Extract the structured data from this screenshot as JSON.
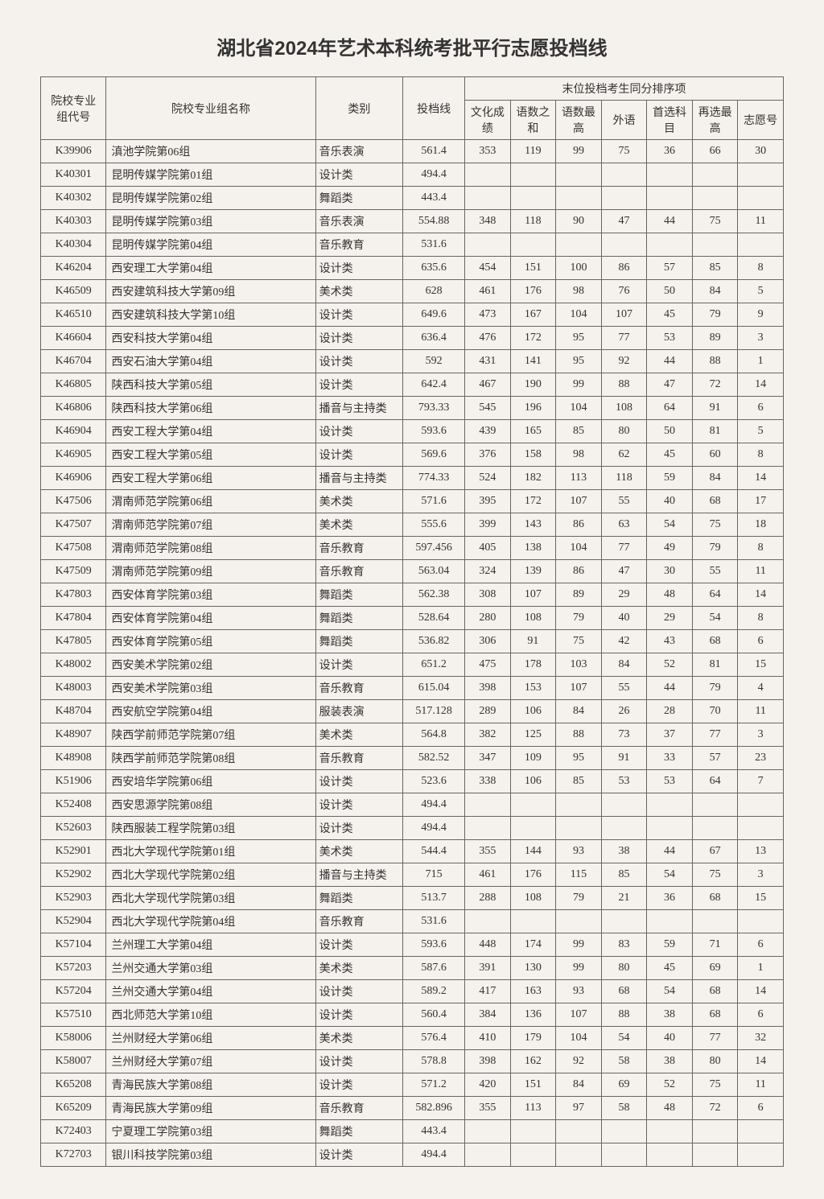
{
  "title": "湖北省2024年艺术本科统考批平行志愿投档线",
  "headers": {
    "code": "院校专业组代号",
    "name": "院校专业组名称",
    "category": "类别",
    "line": "投档线",
    "tiebreak_group": "末位投档考生同分排序项",
    "culture": "文化成绩",
    "yushu_sum": "语数之和",
    "yushu_max": "语数最高",
    "foreign": "外语",
    "first_sub": "首选科目",
    "resel_max": "再选最高",
    "wish_no": "志愿号"
  },
  "columns": [
    "code",
    "name",
    "category",
    "line",
    "culture",
    "yushu_sum",
    "yushu_max",
    "foreign",
    "first_sub",
    "resel_max",
    "wish_no"
  ],
  "col_widths": [
    "72",
    "230",
    "96",
    "68",
    "50",
    "50",
    "50",
    "50",
    "50",
    "50",
    "50"
  ],
  "rows": [
    [
      "K39906",
      "滇池学院第06组",
      "音乐表演",
      "561.4",
      "353",
      "119",
      "99",
      "75",
      "36",
      "66",
      "30"
    ],
    [
      "K40301",
      "昆明传媒学院第01组",
      "设计类",
      "494.4",
      "",
      "",
      "",
      "",
      "",
      "",
      ""
    ],
    [
      "K40302",
      "昆明传媒学院第02组",
      "舞蹈类",
      "443.4",
      "",
      "",
      "",
      "",
      "",
      "",
      ""
    ],
    [
      "K40303",
      "昆明传媒学院第03组",
      "音乐表演",
      "554.88",
      "348",
      "118",
      "90",
      "47",
      "44",
      "75",
      "11"
    ],
    [
      "K40304",
      "昆明传媒学院第04组",
      "音乐教育",
      "531.6",
      "",
      "",
      "",
      "",
      "",
      "",
      ""
    ],
    [
      "K46204",
      "西安理工大学第04组",
      "设计类",
      "635.6",
      "454",
      "151",
      "100",
      "86",
      "57",
      "85",
      "8"
    ],
    [
      "K46509",
      "西安建筑科技大学第09组",
      "美术类",
      "628",
      "461",
      "176",
      "98",
      "76",
      "50",
      "84",
      "5"
    ],
    [
      "K46510",
      "西安建筑科技大学第10组",
      "设计类",
      "649.6",
      "473",
      "167",
      "104",
      "107",
      "45",
      "79",
      "9"
    ],
    [
      "K46604",
      "西安科技大学第04组",
      "设计类",
      "636.4",
      "476",
      "172",
      "95",
      "77",
      "53",
      "89",
      "3"
    ],
    [
      "K46704",
      "西安石油大学第04组",
      "设计类",
      "592",
      "431",
      "141",
      "95",
      "92",
      "44",
      "88",
      "1"
    ],
    [
      "K46805",
      "陕西科技大学第05组",
      "设计类",
      "642.4",
      "467",
      "190",
      "99",
      "88",
      "47",
      "72",
      "14"
    ],
    [
      "K46806",
      "陕西科技大学第06组",
      "播音与主持类",
      "793.33",
      "545",
      "196",
      "104",
      "108",
      "64",
      "91",
      "6"
    ],
    [
      "K46904",
      "西安工程大学第04组",
      "设计类",
      "593.6",
      "439",
      "165",
      "85",
      "80",
      "50",
      "81",
      "5"
    ],
    [
      "K46905",
      "西安工程大学第05组",
      "设计类",
      "569.6",
      "376",
      "158",
      "98",
      "62",
      "45",
      "60",
      "8"
    ],
    [
      "K46906",
      "西安工程大学第06组",
      "播音与主持类",
      "774.33",
      "524",
      "182",
      "113",
      "118",
      "59",
      "84",
      "14"
    ],
    [
      "K47506",
      "渭南师范学院第06组",
      "美术类",
      "571.6",
      "395",
      "172",
      "107",
      "55",
      "40",
      "68",
      "17"
    ],
    [
      "K47507",
      "渭南师范学院第07组",
      "美术类",
      "555.6",
      "399",
      "143",
      "86",
      "63",
      "54",
      "75",
      "18"
    ],
    [
      "K47508",
      "渭南师范学院第08组",
      "音乐教育",
      "597.456",
      "405",
      "138",
      "104",
      "77",
      "49",
      "79",
      "8"
    ],
    [
      "K47509",
      "渭南师范学院第09组",
      "音乐教育",
      "563.04",
      "324",
      "139",
      "86",
      "47",
      "30",
      "55",
      "11"
    ],
    [
      "K47803",
      "西安体育学院第03组",
      "舞蹈类",
      "562.38",
      "308",
      "107",
      "89",
      "29",
      "48",
      "64",
      "14"
    ],
    [
      "K47804",
      "西安体育学院第04组",
      "舞蹈类",
      "528.64",
      "280",
      "108",
      "79",
      "40",
      "29",
      "54",
      "8"
    ],
    [
      "K47805",
      "西安体育学院第05组",
      "舞蹈类",
      "536.82",
      "306",
      "91",
      "75",
      "42",
      "43",
      "68",
      "6"
    ],
    [
      "K48002",
      "西安美术学院第02组",
      "设计类",
      "651.2",
      "475",
      "178",
      "103",
      "84",
      "52",
      "81",
      "15"
    ],
    [
      "K48003",
      "西安美术学院第03组",
      "音乐教育",
      "615.04",
      "398",
      "153",
      "107",
      "55",
      "44",
      "79",
      "4"
    ],
    [
      "K48704",
      "西安航空学院第04组",
      "服装表演",
      "517.128",
      "289",
      "106",
      "84",
      "26",
      "28",
      "70",
      "11"
    ],
    [
      "K48907",
      "陕西学前师范学院第07组",
      "美术类",
      "564.8",
      "382",
      "125",
      "88",
      "73",
      "37",
      "77",
      "3"
    ],
    [
      "K48908",
      "陕西学前师范学院第08组",
      "音乐教育",
      "582.52",
      "347",
      "109",
      "95",
      "91",
      "33",
      "57",
      "23"
    ],
    [
      "K51906",
      "西安培华学院第06组",
      "设计类",
      "523.6",
      "338",
      "106",
      "85",
      "53",
      "53",
      "64",
      "7"
    ],
    [
      "K52408",
      "西安思源学院第08组",
      "设计类",
      "494.4",
      "",
      "",
      "",
      "",
      "",
      "",
      ""
    ],
    [
      "K52603",
      "陕西服装工程学院第03组",
      "设计类",
      "494.4",
      "",
      "",
      "",
      "",
      "",
      "",
      ""
    ],
    [
      "K52901",
      "西北大学现代学院第01组",
      "美术类",
      "544.4",
      "355",
      "144",
      "93",
      "38",
      "44",
      "67",
      "13"
    ],
    [
      "K52902",
      "西北大学现代学院第02组",
      "播音与主持类",
      "715",
      "461",
      "176",
      "115",
      "85",
      "54",
      "75",
      "3"
    ],
    [
      "K52903",
      "西北大学现代学院第03组",
      "舞蹈类",
      "513.7",
      "288",
      "108",
      "79",
      "21",
      "36",
      "68",
      "15"
    ],
    [
      "K52904",
      "西北大学现代学院第04组",
      "音乐教育",
      "531.6",
      "",
      "",
      "",
      "",
      "",
      "",
      ""
    ],
    [
      "K57104",
      "兰州理工大学第04组",
      "设计类",
      "593.6",
      "448",
      "174",
      "99",
      "83",
      "59",
      "71",
      "6"
    ],
    [
      "K57203",
      "兰州交通大学第03组",
      "美术类",
      "587.6",
      "391",
      "130",
      "99",
      "80",
      "45",
      "69",
      "1"
    ],
    [
      "K57204",
      "兰州交通大学第04组",
      "设计类",
      "589.2",
      "417",
      "163",
      "93",
      "68",
      "54",
      "68",
      "14"
    ],
    [
      "K57510",
      "西北师范大学第10组",
      "设计类",
      "560.4",
      "384",
      "136",
      "107",
      "88",
      "38",
      "68",
      "6"
    ],
    [
      "K58006",
      "兰州财经大学第06组",
      "美术类",
      "576.4",
      "410",
      "179",
      "104",
      "54",
      "40",
      "77",
      "32"
    ],
    [
      "K58007",
      "兰州财经大学第07组",
      "设计类",
      "578.8",
      "398",
      "162",
      "92",
      "58",
      "38",
      "80",
      "14"
    ],
    [
      "K65208",
      "青海民族大学第08组",
      "设计类",
      "571.2",
      "420",
      "151",
      "84",
      "69",
      "52",
      "75",
      "11"
    ],
    [
      "K65209",
      "青海民族大学第09组",
      "音乐教育",
      "582.896",
      "355",
      "113",
      "97",
      "58",
      "48",
      "72",
      "6"
    ],
    [
      "K72403",
      "宁夏理工学院第03组",
      "舞蹈类",
      "443.4",
      "",
      "",
      "",
      "",
      "",
      "",
      ""
    ],
    [
      "K72703",
      "银川科技学院第03组",
      "设计类",
      "494.4",
      "",
      "",
      "",
      "",
      "",
      "",
      ""
    ]
  ]
}
